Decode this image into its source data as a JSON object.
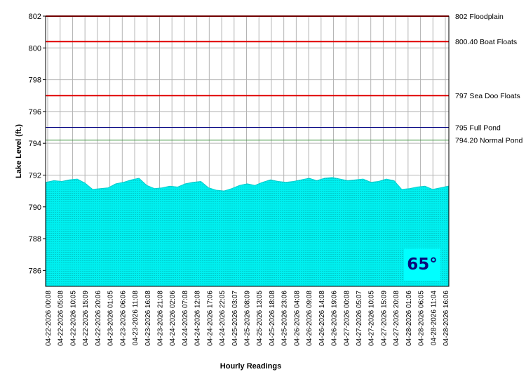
{
  "chart_data": {
    "type": "area",
    "xlabel": "Hourly Readings",
    "ylabel": "Lake Level (ft.)",
    "ylim": [
      785,
      802
    ],
    "yticks": [
      786,
      788,
      790,
      792,
      794,
      796,
      798,
      800,
      802
    ],
    "grid": true,
    "colors": {
      "area": "#00f0f0",
      "grid": "#b4b4b4"
    },
    "x_tick_labels": [
      "04-22-2026 00:08",
      "04-22-2026 05:08",
      "04-22-2026 10:05",
      "04-22-2026 15:09",
      "04-22-2026 20:06",
      "04-23-2026 01:05",
      "04-23-2026 06:06",
      "04-23-2026 11:08",
      "04-23-2026 16:08",
      "04-23-2026 21:08",
      "04-24-2026 02:06",
      "04-24-2026 07:08",
      "04-24-2026 12:08",
      "04-24-2026 17:06",
      "04-24-2026 22:05",
      "04-25-2026 03:07",
      "04-25-2026 08:09",
      "04-25-2026 13:05",
      "04-25-2026 18:08",
      "04-25-2026 23:06",
      "04-26-2026 04:08",
      "04-26-2026 09:08",
      "04-26-2026 14:08",
      "04-26-2026 19:06",
      "04-27-2026 00:08",
      "04-27-2026 05:07",
      "04-27-2026 10:05",
      "04-27-2026 15:09",
      "04-27-2026 20:08",
      "04-28-2026 01:06",
      "04-28-2026 06:05",
      "04-28-2026 11:04",
      "04-28-2026 16:06"
    ],
    "values": [
      791.55,
      791.65,
      791.6,
      791.7,
      791.75,
      791.5,
      791.1,
      791.15,
      791.2,
      791.45,
      791.55,
      791.7,
      791.8,
      791.35,
      791.15,
      791.2,
      791.3,
      791.25,
      791.45,
      791.55,
      791.6,
      791.2,
      791.05,
      791.0,
      791.15,
      791.35,
      791.45,
      791.35,
      791.55,
      791.7,
      791.6,
      791.55,
      791.6,
      791.7,
      791.8,
      791.65,
      791.8,
      791.85,
      791.75,
      791.65,
      791.7,
      791.75,
      791.55,
      791.6,
      791.75,
      791.65,
      791.1,
      791.15,
      791.25,
      791.3,
      791.1,
      791.2,
      791.3
    ],
    "reference_lines": [
      {
        "value": 802,
        "label": "802 Floodplain",
        "color": "#e00000"
      },
      {
        "value": 800.4,
        "label": "800.40 Boat Floats",
        "color": "#e00000"
      },
      {
        "value": 797,
        "label": "797 Sea Doo Floats",
        "color": "#e00000"
      },
      {
        "value": 795,
        "label": "795 Full Pond",
        "color": "#000080"
      },
      {
        "value": 794.2,
        "label": "794.20 Normal Pond",
        "color": "#2e8b2e"
      }
    ],
    "annotation": "65°"
  }
}
